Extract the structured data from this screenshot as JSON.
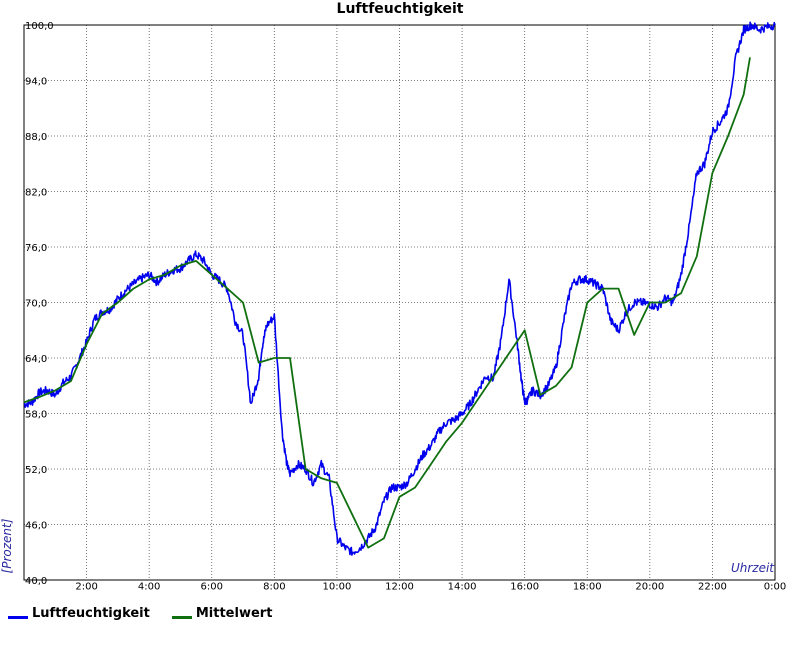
{
  "chart_data": {
    "type": "line",
    "title": "Luftfeuchtigkeit",
    "xlabel": "Uhrzeit",
    "ylabel": "[Prozent]",
    "xlim": [
      0,
      24
    ],
    "ylim": [
      40,
      100
    ],
    "y_ticks": [
      "40,0",
      "46,0",
      "52,0",
      "58,0",
      "64,0",
      "70,0",
      "76,0",
      "82,0",
      "88,0",
      "94,0",
      "100,0"
    ],
    "x_ticks": [
      "2:00",
      "4:00",
      "6:00",
      "8:00",
      "10:00",
      "12:00",
      "14:00",
      "16:00",
      "18:00",
      "20:00",
      "22:00",
      "0:00"
    ],
    "grid": true,
    "legend_position": "bottom-left",
    "series": [
      {
        "name": "Luftfeuchtigkeit",
        "color": "#0000ee",
        "x": [
          0.0,
          0.25,
          0.5,
          0.75,
          1.0,
          1.25,
          1.5,
          1.75,
          2.0,
          2.25,
          2.5,
          2.75,
          3.0,
          3.25,
          3.5,
          3.75,
          4.0,
          4.25,
          4.5,
          4.75,
          5.0,
          5.25,
          5.5,
          5.75,
          6.0,
          6.25,
          6.5,
          6.75,
          7.0,
          7.25,
          7.5,
          7.6,
          7.75,
          8.0,
          8.25,
          8.4,
          8.5,
          8.75,
          9.0,
          9.25,
          9.5,
          9.75,
          10.0,
          10.25,
          10.5,
          10.75,
          11.0,
          11.25,
          11.5,
          11.75,
          12.0,
          12.25,
          12.5,
          12.75,
          13.0,
          13.25,
          13.5,
          13.75,
          14.0,
          14.25,
          14.5,
          14.75,
          15.0,
          15.25,
          15.5,
          15.75,
          15.9,
          16.0,
          16.1,
          16.25,
          16.5,
          16.75,
          17.0,
          17.25,
          17.5,
          17.75,
          18.0,
          18.25,
          18.5,
          18.75,
          19.0,
          19.25,
          19.5,
          19.75,
          20.0,
          20.25,
          20.5,
          20.75,
          21.0,
          21.25,
          21.5,
          21.75,
          22.0,
          22.25,
          22.5,
          22.75,
          23.0,
          23.25,
          23.5,
          23.75,
          24.0
        ],
        "values": [
          59.0,
          59.2,
          60.3,
          60.5,
          60.0,
          61.3,
          62.0,
          63.8,
          65.7,
          68.2,
          69.0,
          69.3,
          70.4,
          71.3,
          72.0,
          72.6,
          73.0,
          72.2,
          73.0,
          73.5,
          73.7,
          74.5,
          75.2,
          74.5,
          73.0,
          72.4,
          71.5,
          68.0,
          66.5,
          59.0,
          62.0,
          65.0,
          67.5,
          68.5,
          56.0,
          52.5,
          51.5,
          52.5,
          52.0,
          50.5,
          52.5,
          51.0,
          44.5,
          43.5,
          43.0,
          43.5,
          44.5,
          45.8,
          48.5,
          50.0,
          50.0,
          50.5,
          52.0,
          53.5,
          54.5,
          56.0,
          57.0,
          57.3,
          58.0,
          59.0,
          60.5,
          62.0,
          61.8,
          66.0,
          72.5,
          66.0,
          61.5,
          59.2,
          59.5,
          60.5,
          60.0,
          61.0,
          63.0,
          68.0,
          72.0,
          72.5,
          72.5,
          72.0,
          71.5,
          68.0,
          67.0,
          69.0,
          70.0,
          70.0,
          69.8,
          69.5,
          70.5,
          70.0,
          73.0,
          78.0,
          84.0,
          85.0,
          88.5,
          89.5,
          91.0,
          96.5,
          99.5,
          100.0,
          99.5,
          99.8,
          100.0
        ]
      },
      {
        "name": "Mittelwert",
        "color": "#107010",
        "x": [
          0.0,
          0.5,
          1.0,
          1.5,
          2.0,
          2.5,
          3.0,
          3.5,
          4.0,
          4.5,
          5.0,
          5.5,
          6.0,
          6.5,
          7.0,
          7.5,
          8.0,
          8.5,
          9.0,
          9.5,
          10.0,
          10.5,
          11.0,
          11.5,
          12.0,
          12.5,
          13.0,
          13.5,
          14.0,
          14.5,
          15.0,
          15.5,
          16.0,
          16.5,
          17.0,
          17.5,
          18.0,
          18.5,
          19.0,
          19.5,
          20.0,
          20.5,
          21.0,
          21.5,
          22.0,
          22.5,
          23.0,
          23.2
        ],
        "values": [
          59.2,
          59.8,
          60.5,
          61.5,
          65.5,
          68.8,
          70.0,
          71.5,
          72.5,
          73.0,
          74.0,
          74.5,
          73.0,
          71.5,
          70.0,
          63.5,
          64.0,
          64.0,
          52.0,
          51.0,
          50.5,
          47.0,
          43.5,
          44.5,
          49.0,
          50.0,
          52.5,
          55.0,
          57.0,
          59.5,
          62.0,
          64.5,
          67.0,
          60.0,
          61.0,
          63.0,
          70.0,
          71.5,
          71.5,
          66.5,
          70.0,
          70.0,
          71.0,
          75.0,
          84.0,
          88.0,
          92.5,
          96.5
        ]
      }
    ]
  }
}
